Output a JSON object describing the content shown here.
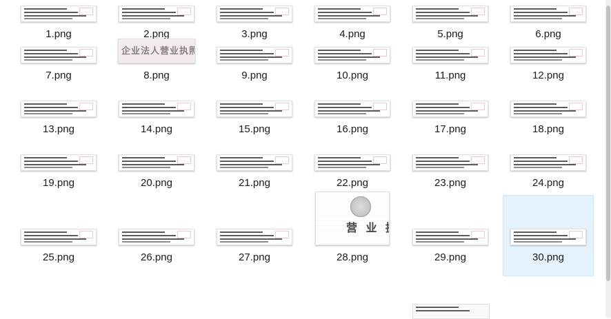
{
  "files": [
    {
      "name": "1.png",
      "kind": "doc"
    },
    {
      "name": "2.png",
      "kind": "doc"
    },
    {
      "name": "3.png",
      "kind": "doc"
    },
    {
      "name": "4.png",
      "kind": "doc"
    },
    {
      "name": "5.png",
      "kind": "doc"
    },
    {
      "name": "6.png",
      "kind": "doc"
    },
    {
      "name": "7.png",
      "kind": "doc"
    },
    {
      "name": "8.png",
      "kind": "banner"
    },
    {
      "name": "9.png",
      "kind": "doc"
    },
    {
      "name": "10.png",
      "kind": "doc"
    },
    {
      "name": "11.png",
      "kind": "doc"
    },
    {
      "name": "12.png",
      "kind": "doc"
    },
    {
      "name": "13.png",
      "kind": "doc"
    },
    {
      "name": "14.png",
      "kind": "doc"
    },
    {
      "name": "15.png",
      "kind": "doc"
    },
    {
      "name": "16.png",
      "kind": "doc"
    },
    {
      "name": "17.png",
      "kind": "doc"
    },
    {
      "name": "18.png",
      "kind": "doc"
    },
    {
      "name": "19.png",
      "kind": "doc"
    },
    {
      "name": "20.png",
      "kind": "doc"
    },
    {
      "name": "21.png",
      "kind": "doc"
    },
    {
      "name": "22.png",
      "kind": "doc"
    },
    {
      "name": "23.png",
      "kind": "doc"
    },
    {
      "name": "24.png",
      "kind": "doc"
    },
    {
      "name": "25.png",
      "kind": "doc"
    },
    {
      "name": "26.png",
      "kind": "doc"
    },
    {
      "name": "27.png",
      "kind": "doc"
    },
    {
      "name": "28.png",
      "kind": "tall"
    },
    {
      "name": "29.png",
      "kind": "doc"
    },
    {
      "name": "30.png",
      "kind": "doc",
      "selected": true
    }
  ],
  "banner_text": "企业法人营业执照",
  "tall_text": "营 业 执",
  "colors": {
    "selection": "#e5f1fb",
    "label": "#1a1a1a"
  }
}
